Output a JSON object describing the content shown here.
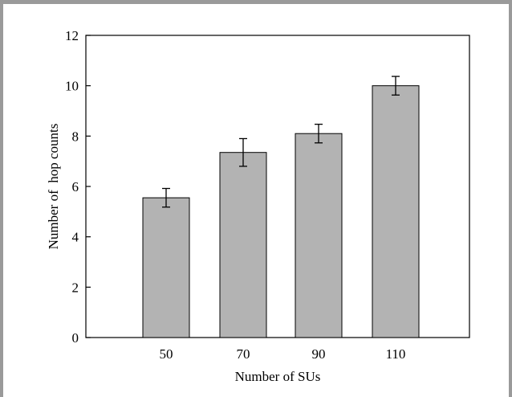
{
  "chart_data": {
    "type": "bar",
    "categories": [
      "50",
      "70",
      "90",
      "110"
    ],
    "values": [
      5.55,
      7.35,
      8.1,
      10.0
    ],
    "error": [
      0.37,
      0.55,
      0.37,
      0.37
    ],
    "title": "",
    "xlabel": "Number of SUs",
    "ylabel": "Number of  hop counts",
    "ylim": [
      0,
      12
    ],
    "yticks": [
      0,
      2,
      4,
      6,
      8,
      10,
      12
    ],
    "grid": false,
    "legend": "none",
    "bar_color": "#b3b3b3",
    "bar_edge_color": "#000000"
  }
}
